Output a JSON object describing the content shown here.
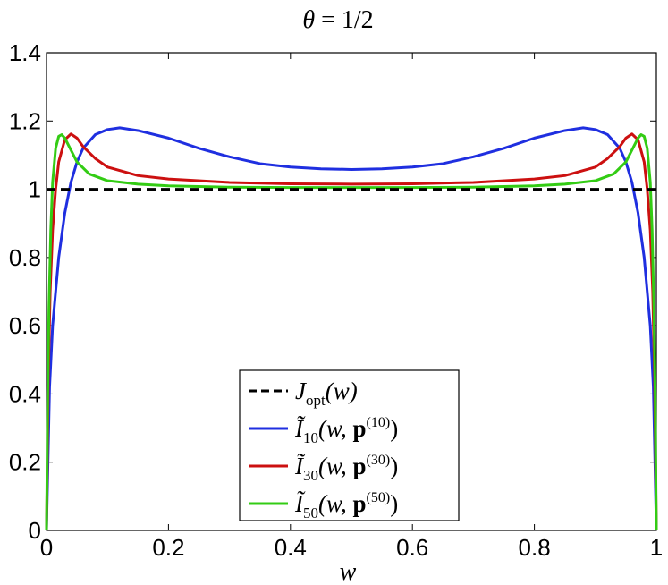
{
  "chart_data": {
    "type": "line",
    "title": "θ = 1/2",
    "xlabel": "w",
    "ylabel": "",
    "xlim": [
      0,
      1
    ],
    "ylim": [
      0,
      1.4
    ],
    "xticks": [
      "0",
      "0.2",
      "0.4",
      "0.6",
      "0.8",
      "1"
    ],
    "yticks": [
      "0",
      "0.2",
      "0.4",
      "0.6",
      "0.8",
      "1",
      "1.2",
      "1.4"
    ],
    "grid": false,
    "legend_position": "bottom-center",
    "series": [
      {
        "name": "J_opt(w)",
        "color": "#000000",
        "dash": "dashed",
        "x": [
          0,
          1
        ],
        "y": [
          1.0,
          1.0
        ]
      },
      {
        "name": "Ĩ_10(w, p^(10))",
        "color": "#1f2fe0",
        "x": [
          0,
          0.005,
          0.01,
          0.02,
          0.03,
          0.04,
          0.05,
          0.06,
          0.08,
          0.1,
          0.12,
          0.15,
          0.2,
          0.25,
          0.3,
          0.35,
          0.4,
          0.45,
          0.5,
          0.55,
          0.6,
          0.65,
          0.7,
          0.75,
          0.8,
          0.85,
          0.88,
          0.9,
          0.92,
          0.94,
          0.95,
          0.96,
          0.97,
          0.98,
          0.99,
          0.995,
          1
        ],
        "y": [
          0,
          0.42,
          0.6,
          0.8,
          0.93,
          1.02,
          1.08,
          1.12,
          1.16,
          1.175,
          1.18,
          1.172,
          1.15,
          1.12,
          1.095,
          1.075,
          1.065,
          1.06,
          1.058,
          1.06,
          1.065,
          1.075,
          1.095,
          1.12,
          1.15,
          1.172,
          1.18,
          1.175,
          1.16,
          1.12,
          1.08,
          1.02,
          0.93,
          0.8,
          0.6,
          0.42,
          0
        ]
      },
      {
        "name": "Ĩ_30(w, p^(30))",
        "color": "#cc1010",
        "x": [
          0,
          0.003,
          0.006,
          0.01,
          0.015,
          0.02,
          0.03,
          0.04,
          0.05,
          0.06,
          0.08,
          0.1,
          0.15,
          0.2,
          0.3,
          0.4,
          0.5,
          0.6,
          0.7,
          0.8,
          0.85,
          0.9,
          0.92,
          0.94,
          0.95,
          0.96,
          0.97,
          0.98,
          0.985,
          0.99,
          0.994,
          0.997,
          1
        ],
        "y": [
          0,
          0.45,
          0.7,
          0.88,
          1.0,
          1.08,
          1.145,
          1.162,
          1.15,
          1.125,
          1.09,
          1.065,
          1.04,
          1.03,
          1.02,
          1.016,
          1.015,
          1.016,
          1.02,
          1.03,
          1.04,
          1.065,
          1.09,
          1.125,
          1.15,
          1.162,
          1.145,
          1.08,
          1.0,
          0.88,
          0.7,
          0.45,
          0
        ]
      },
      {
        "name": "Ĩ_50(w, p^(50))",
        "color": "#33cc14",
        "x": [
          0,
          0.002,
          0.004,
          0.007,
          0.01,
          0.015,
          0.02,
          0.025,
          0.03,
          0.04,
          0.05,
          0.07,
          0.1,
          0.15,
          0.2,
          0.3,
          0.4,
          0.5,
          0.6,
          0.7,
          0.8,
          0.85,
          0.9,
          0.93,
          0.95,
          0.96,
          0.97,
          0.975,
          0.98,
          0.985,
          0.99,
          0.993,
          0.996,
          0.998,
          1
        ],
        "y": [
          0,
          0.4,
          0.65,
          0.88,
          1.02,
          1.12,
          1.155,
          1.16,
          1.15,
          1.115,
          1.08,
          1.045,
          1.025,
          1.015,
          1.01,
          1.006,
          1.005,
          1.005,
          1.005,
          1.006,
          1.01,
          1.015,
          1.025,
          1.045,
          1.08,
          1.115,
          1.15,
          1.16,
          1.155,
          1.12,
          1.02,
          0.88,
          0.65,
          0.4,
          0
        ]
      }
    ]
  },
  "legend": {
    "entries": [
      {
        "main": "J",
        "sub": "opt",
        "tail": "(w)"
      },
      {
        "main": "Ĩ",
        "sub": "10",
        "tail": "(w, ",
        "bold": "p",
        "sup": "(10)",
        "close": ")"
      },
      {
        "main": "Ĩ",
        "sub": "30",
        "tail": "(w, ",
        "bold": "p",
        "sup": "(30)",
        "close": ")"
      },
      {
        "main": "Ĩ",
        "sub": "50",
        "tail": "(w, ",
        "bold": "p",
        "sup": "(50)",
        "close": ")"
      }
    ]
  },
  "title_parts": {
    "theta": "θ",
    "rest": " = 1/2"
  }
}
